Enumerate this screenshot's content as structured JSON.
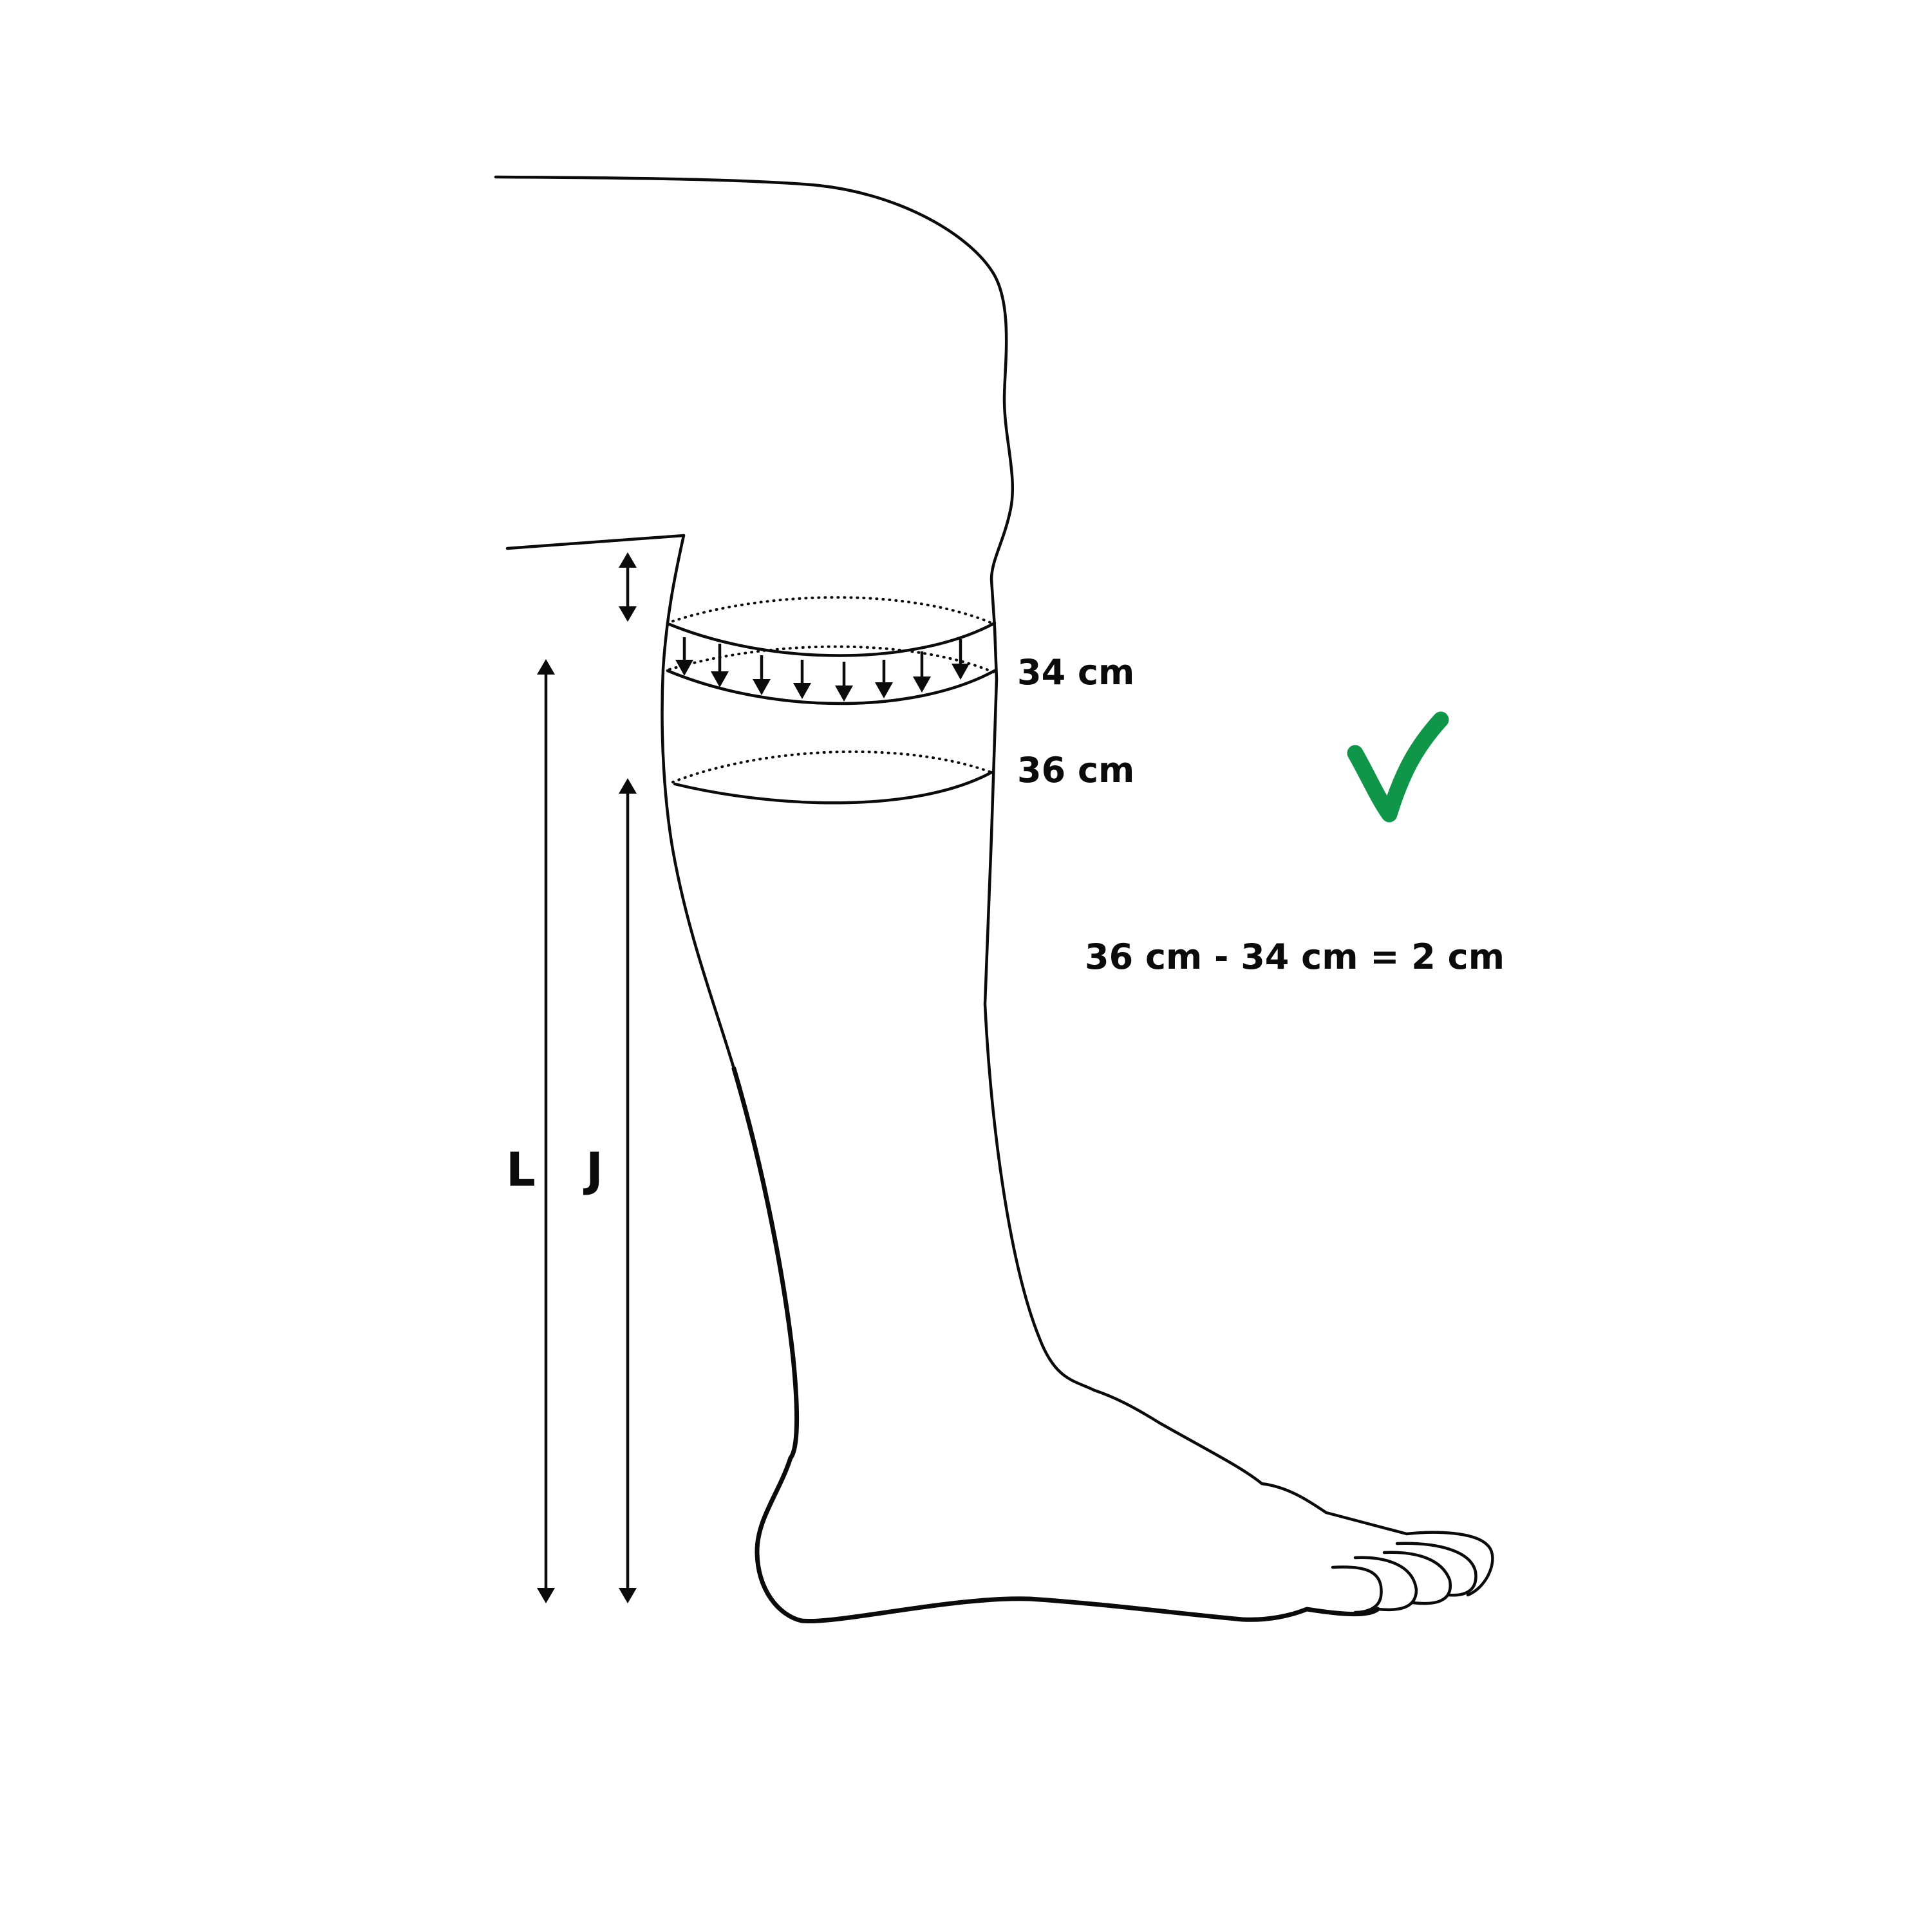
{
  "labels": {
    "upper_band": "34 cm",
    "lower_band": "36 cm",
    "equation": "36 cm - 34 cm = 2 cm",
    "length_l": "L",
    "length_j": "J"
  },
  "colors": {
    "line": "#0b0b0b",
    "check": "#0f9648",
    "background": "#ffffff"
  },
  "icons": {
    "check": "check-icon"
  }
}
